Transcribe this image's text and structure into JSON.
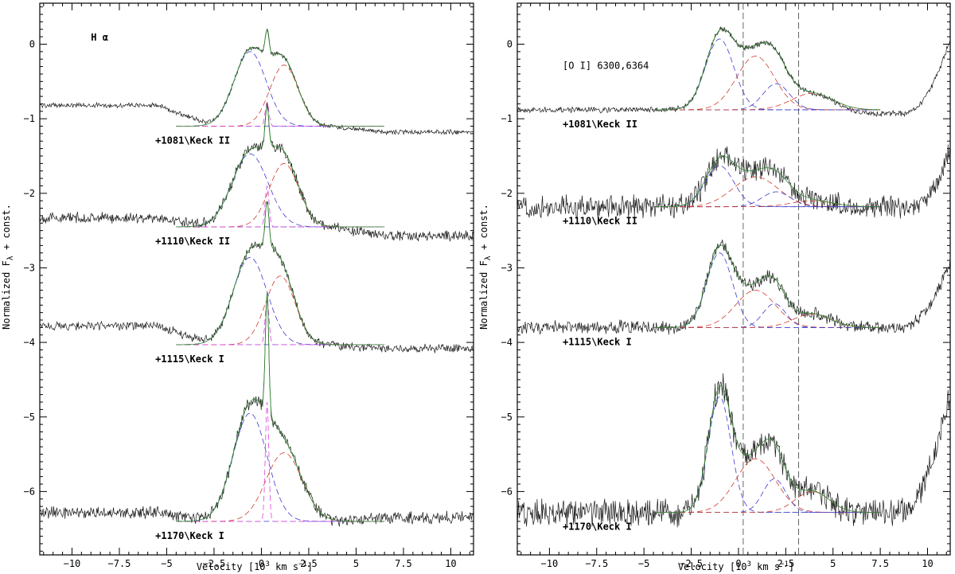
{
  "figure": {
    "ylabel": "Normalized F",
    "ylabel_sub": "λ",
    "ylabel_suffix": " + const.",
    "xlabel_left": "Velocity [10",
    "xlabel_sup": "3",
    "xlabel_mid": " km s",
    "xlabel_sup2": "−1",
    "xlabel_right": "]"
  },
  "colors": {
    "observed": "#1a1a1a",
    "total_model": "#2e8b2e",
    "blue_component": "#3a3acc",
    "red_component": "#d23a2a",
    "narrow_component": "#e040e0",
    "reference_lines": "#555555"
  },
  "chart_data": [
    {
      "type": "line",
      "panel": "left",
      "title": "H α",
      "title_parts": [
        "H",
        "α"
      ],
      "xlim": [
        -11.7,
        11.2
      ],
      "ylim": [
        -6.85,
        0.55
      ],
      "xticks": [
        -10,
        -7.5,
        -5,
        -2.5,
        0,
        2.5,
        5,
        7.5,
        10
      ],
      "xtick_labels": [
        "−10",
        "−7.5",
        "−5",
        "−2.5",
        "0",
        "2.5",
        "5",
        "7.5",
        "10"
      ],
      "yticks": [
        0,
        -1,
        -2,
        -3,
        -4,
        -5,
        -6
      ],
      "ytick_labels": [
        "0",
        "−1",
        "−2",
        "−3",
        "−4",
        "−5",
        "−6"
      ],
      "series": [
        {
          "label": "+1081\\Keck II",
          "baseline": -1.1,
          "x_range": [
            -11.7,
            11.2
          ],
          "fit_range": [
            -4.5,
            6.5
          ],
          "left_offset": 0.28,
          "right_offset": -0.08,
          "noise": 0.025,
          "components": [
            {
              "kind": "blue",
              "center": -0.6,
              "sigma": 0.85,
              "amp": 1.0
            },
            {
              "kind": "red",
              "center": 1.2,
              "sigma": 0.75,
              "amp": 0.82
            },
            {
              "kind": "narrow",
              "center": 0.3,
              "sigma": 0.1,
              "amp": 0.32
            }
          ]
        },
        {
          "label": "+1110\\Keck II",
          "baseline": -2.45,
          "x_range": [
            -11.7,
            11.2
          ],
          "fit_range": [
            -4.5,
            6.5
          ],
          "left_offset": 0.12,
          "right_offset": -0.12,
          "noise": 0.055,
          "components": [
            {
              "kind": "blue",
              "center": -0.6,
              "sigma": 0.95,
              "amp": 0.98
            },
            {
              "kind": "red",
              "center": 1.2,
              "sigma": 0.78,
              "amp": 0.85
            },
            {
              "kind": "narrow",
              "center": 0.3,
              "sigma": 0.1,
              "amp": 0.55
            }
          ]
        },
        {
          "label": "+1115\\Keck I",
          "baseline": -4.03,
          "x_range": [
            -11.7,
            11.2
          ],
          "fit_range": [
            -4.5,
            6.5
          ],
          "left_offset": 0.25,
          "right_offset": -0.05,
          "noise": 0.045,
          "components": [
            {
              "kind": "blue",
              "center": -0.6,
              "sigma": 0.9,
              "amp": 1.17
            },
            {
              "kind": "red",
              "center": 1.0,
              "sigma": 0.78,
              "amp": 0.92
            },
            {
              "kind": "narrow",
              "center": 0.3,
              "sigma": 0.1,
              "amp": 0.6
            }
          ]
        },
        {
          "label": "+1170\\Keck I",
          "baseline": -6.4,
          "x_range": [
            -11.7,
            11.2
          ],
          "fit_range": [
            -4.5,
            6.5
          ],
          "left_offset": 0.12,
          "right_offset": 0.05,
          "noise": 0.065,
          "components": [
            {
              "kind": "blue",
              "center": -0.6,
              "sigma": 0.9,
              "amp": 1.45
            },
            {
              "kind": "red",
              "center": 1.2,
              "sigma": 0.95,
              "amp": 0.92
            },
            {
              "kind": "narrow",
              "center": 0.3,
              "sigma": 0.09,
              "amp": 1.6
            }
          ]
        }
      ]
    },
    {
      "type": "line",
      "panel": "right",
      "title": "[O I] 6300,6364",
      "xlim": [
        -11.7,
        11.2
      ],
      "ylim": [
        -6.85,
        0.55
      ],
      "xticks": [
        -10,
        -7.5,
        -5,
        -2.5,
        0,
        2.5,
        5,
        7.5,
        10
      ],
      "xtick_labels": [
        "−10",
        "−7.5",
        "−5",
        "−2.5",
        "0",
        "2.5",
        "5",
        "7.5",
        "10"
      ],
      "yticks": [
        0,
        -1,
        -2,
        -3,
        -4,
        -5,
        -6
      ],
      "ytick_labels": [
        "0",
        "−1",
        "−2",
        "−3",
        "−4",
        "−5",
        "−6"
      ],
      "reference_lines_x": [
        0.25,
        3.18
      ],
      "series": [
        {
          "label": "+1081\\Keck II",
          "baseline": -0.88,
          "x_range": [
            -11.7,
            11.2
          ],
          "fit_range": [
            -4.5,
            7.5
          ],
          "left_offset": 0.0,
          "right_offset": -0.05,
          "noise": 0.03,
          "components": [
            {
              "kind": "blue",
              "center": -1.0,
              "sigma": 0.75,
              "amp": 0.95
            },
            {
              "kind": "red",
              "center": 0.9,
              "sigma": 1.0,
              "amp": 0.72
            },
            {
              "kind": "blue",
              "center": 2.0,
              "sigma": 0.7,
              "amp": 0.35
            },
            {
              "kind": "red",
              "center": 3.9,
              "sigma": 1.1,
              "amp": 0.22
            }
          ],
          "rise": {
            "start": 8.7,
            "height": 1.0
          }
        },
        {
          "label": "+1110\\Keck II",
          "baseline": -2.18,
          "x_range": [
            -11.7,
            11.2
          ],
          "fit_range": [
            -4.5,
            7.5
          ],
          "left_offset": 0.0,
          "right_offset": 0.0,
          "noise": 0.12,
          "components": [
            {
              "kind": "blue",
              "center": -1.0,
              "sigma": 0.75,
              "amp": 0.55
            },
            {
              "kind": "red",
              "center": 0.9,
              "sigma": 1.2,
              "amp": 0.4
            },
            {
              "kind": "blue",
              "center": 2.0,
              "sigma": 0.75,
              "amp": 0.2
            },
            {
              "kind": "red",
              "center": 3.9,
              "sigma": 1.1,
              "amp": 0.08
            }
          ],
          "rise": {
            "start": 9.2,
            "height": 0.75
          }
        },
        {
          "label": "+1115\\Keck I",
          "baseline": -3.8,
          "x_range": [
            -11.7,
            11.2
          ],
          "fit_range": [
            -4.5,
            7.5
          ],
          "left_offset": 0.0,
          "right_offset": 0.0,
          "noise": 0.07,
          "components": [
            {
              "kind": "blue",
              "center": -1.0,
              "sigma": 0.68,
              "amp": 1.0
            },
            {
              "kind": "red",
              "center": 0.9,
              "sigma": 1.05,
              "amp": 0.5
            },
            {
              "kind": "blue",
              "center": 1.9,
              "sigma": 0.6,
              "amp": 0.32
            },
            {
              "kind": "red",
              "center": 3.9,
              "sigma": 1.0,
              "amp": 0.18
            }
          ],
          "rise": {
            "start": 8.6,
            "height": 0.9
          }
        },
        {
          "label": "+1170\\Keck I",
          "baseline": -6.28,
          "x_range": [
            -11.7,
            11.2
          ],
          "fit_range": [
            -4.5,
            7.5
          ],
          "left_offset": 0.0,
          "right_offset": 0.0,
          "noise": 0.14,
          "components": [
            {
              "kind": "blue",
              "center": -1.0,
              "sigma": 0.6,
              "amp": 1.55
            },
            {
              "kind": "red",
              "center": 0.9,
              "sigma": 1.05,
              "amp": 0.72
            },
            {
              "kind": "blue",
              "center": 1.9,
              "sigma": 0.6,
              "amp": 0.45
            },
            {
              "kind": "red",
              "center": 3.9,
              "sigma": 0.9,
              "amp": 0.28
            }
          ],
          "rise": {
            "start": 8.4,
            "height": 1.6
          }
        }
      ]
    }
  ]
}
